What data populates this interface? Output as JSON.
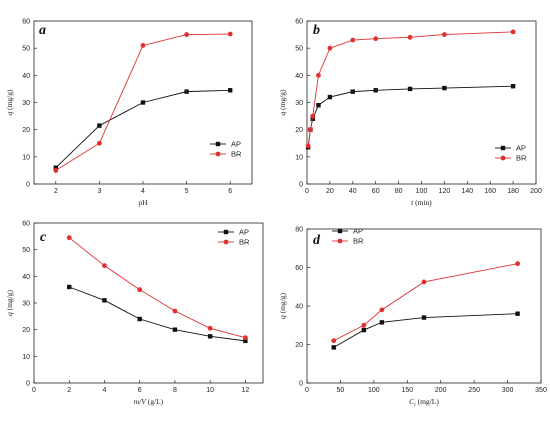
{
  "chart_data": [
    {
      "type": "line",
      "panel_label": "a",
      "xlabel": "pH",
      "ylabel": "q (mg/g)",
      "xlim": [
        1.5,
        6.5
      ],
      "ylim": [
        0,
        60
      ],
      "xticks": [
        2,
        3,
        4,
        5,
        6
      ],
      "yticks": [
        0,
        10,
        20,
        30,
        40,
        50,
        60
      ],
      "legend_position": "bottom-right",
      "series": [
        {
          "name": "AP",
          "color": "#111111",
          "marker": "square",
          "x": [
            2,
            3,
            4,
            5,
            6
          ],
          "values": [
            6,
            21.5,
            30,
            34,
            34.5
          ]
        },
        {
          "name": "BR",
          "color": "#e03030",
          "marker": "circle",
          "x": [
            2,
            3,
            4,
            5,
            6
          ],
          "values": [
            5,
            15,
            51,
            55,
            55.2
          ]
        }
      ]
    },
    {
      "type": "line",
      "panel_label": "b",
      "xlabel": "t (min)",
      "ylabel": "q (mg/g)",
      "xlim": [
        0,
        200
      ],
      "ylim": [
        0,
        60
      ],
      "xticks": [
        0,
        20,
        40,
        60,
        80,
        100,
        120,
        140,
        160,
        180,
        200
      ],
      "yticks": [
        0,
        10,
        20,
        30,
        40,
        50,
        60
      ],
      "legend_position": "bottom-right",
      "series": [
        {
          "name": "AP",
          "color": "#111111",
          "marker": "square",
          "x": [
            1,
            3,
            5,
            10,
            20,
            40,
            60,
            90,
            120,
            180
          ],
          "values": [
            13.5,
            20,
            24,
            29,
            32,
            34,
            34.5,
            35,
            35.3,
            36
          ]
        },
        {
          "name": "BR",
          "color": "#e03030",
          "marker": "circle",
          "x": [
            1,
            3,
            5,
            10,
            20,
            40,
            60,
            90,
            120,
            180
          ],
          "values": [
            14,
            20,
            25,
            40,
            50,
            53,
            53.5,
            54,
            55,
            56
          ]
        }
      ]
    },
    {
      "type": "line",
      "panel_label": "c",
      "xlabel": "m/V (g/L)",
      "ylabel": "q (mg/g)",
      "xlim": [
        0,
        13
      ],
      "ylim": [
        0,
        60
      ],
      "xticks": [
        0,
        2,
        4,
        6,
        8,
        10,
        12
      ],
      "yticks": [
        0,
        10,
        20,
        30,
        40,
        50,
        60
      ],
      "legend_position": "top-right",
      "series": [
        {
          "name": "AP",
          "color": "#111111",
          "marker": "square",
          "x": [
            2,
            4,
            6,
            8,
            10,
            12
          ],
          "values": [
            36,
            31,
            24,
            20,
            17.5,
            15.8
          ]
        },
        {
          "name": "BR",
          "color": "#e03030",
          "marker": "circle",
          "x": [
            2,
            4,
            6,
            8,
            10,
            12
          ],
          "values": [
            54.5,
            44,
            35,
            27,
            20.5,
            17
          ]
        }
      ]
    },
    {
      "type": "line",
      "panel_label": "d",
      "xlabel": "C (mg/L)",
      "xlabel_subscript": "i",
      "ylabel": "q (mg/g)",
      "xlim": [
        0,
        350
      ],
      "ylim": [
        0,
        80
      ],
      "xticks": [
        0,
        50,
        100,
        150,
        200,
        250,
        300,
        350
      ],
      "yticks": [
        0,
        20,
        40,
        60,
        80
      ],
      "legend_position": "top-left",
      "series": [
        {
          "name": "AP",
          "color": "#111111",
          "marker": "square",
          "x": [
            40,
            85,
            112,
            175,
            315
          ],
          "values": [
            18.5,
            27.5,
            31.5,
            34,
            36
          ]
        },
        {
          "name": "BR",
          "color": "#e03030",
          "marker": "circle",
          "x": [
            40,
            85,
            112,
            175,
            315
          ],
          "values": [
            22,
            30,
            38,
            52.5,
            62
          ]
        }
      ]
    }
  ]
}
